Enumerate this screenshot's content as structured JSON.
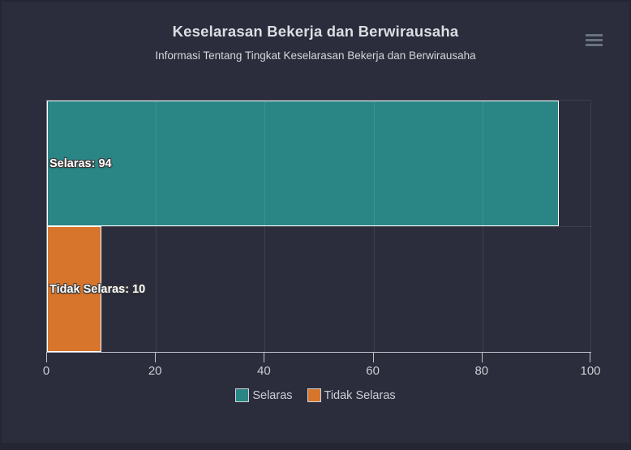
{
  "chart_data": {
    "type": "bar",
    "title": "Keselarasan Bekerja dan Berwirausaha",
    "subtitle": "Informasi Tentang Tingkat Keselarasan Bekerja dan Berwirausaha",
    "categories": [
      "Selaras",
      "Tidak Selaras"
    ],
    "series": [
      {
        "name": "Selaras",
        "value": 94,
        "color": "#2a8585",
        "data_label": "Selaras: 94"
      },
      {
        "name": "Tidak Selaras",
        "value": 10,
        "color": "#d7752c",
        "data_label": "Tidak Selaras: 10"
      }
    ],
    "xlim": [
      0,
      100
    ],
    "ticks": [
      "0",
      "20",
      "40",
      "60",
      "80",
      "100"
    ],
    "grid": true,
    "legend_position": "bottom",
    "orientation": "horizontal"
  },
  "legend": {
    "items": [
      {
        "label": "Selaras",
        "color": "#2a8585"
      },
      {
        "label": "Tidak Selaras",
        "color": "#d7752c"
      }
    ]
  },
  "menu": {
    "icon": "hamburger-menu-icon"
  },
  "colors": {
    "background": "#2b2d3c",
    "frame": "#242634",
    "title_text": "#dcdee3",
    "body_text": "#ccced6",
    "axis_line": "#c2c4cd",
    "bar_border": "#ffffff"
  }
}
